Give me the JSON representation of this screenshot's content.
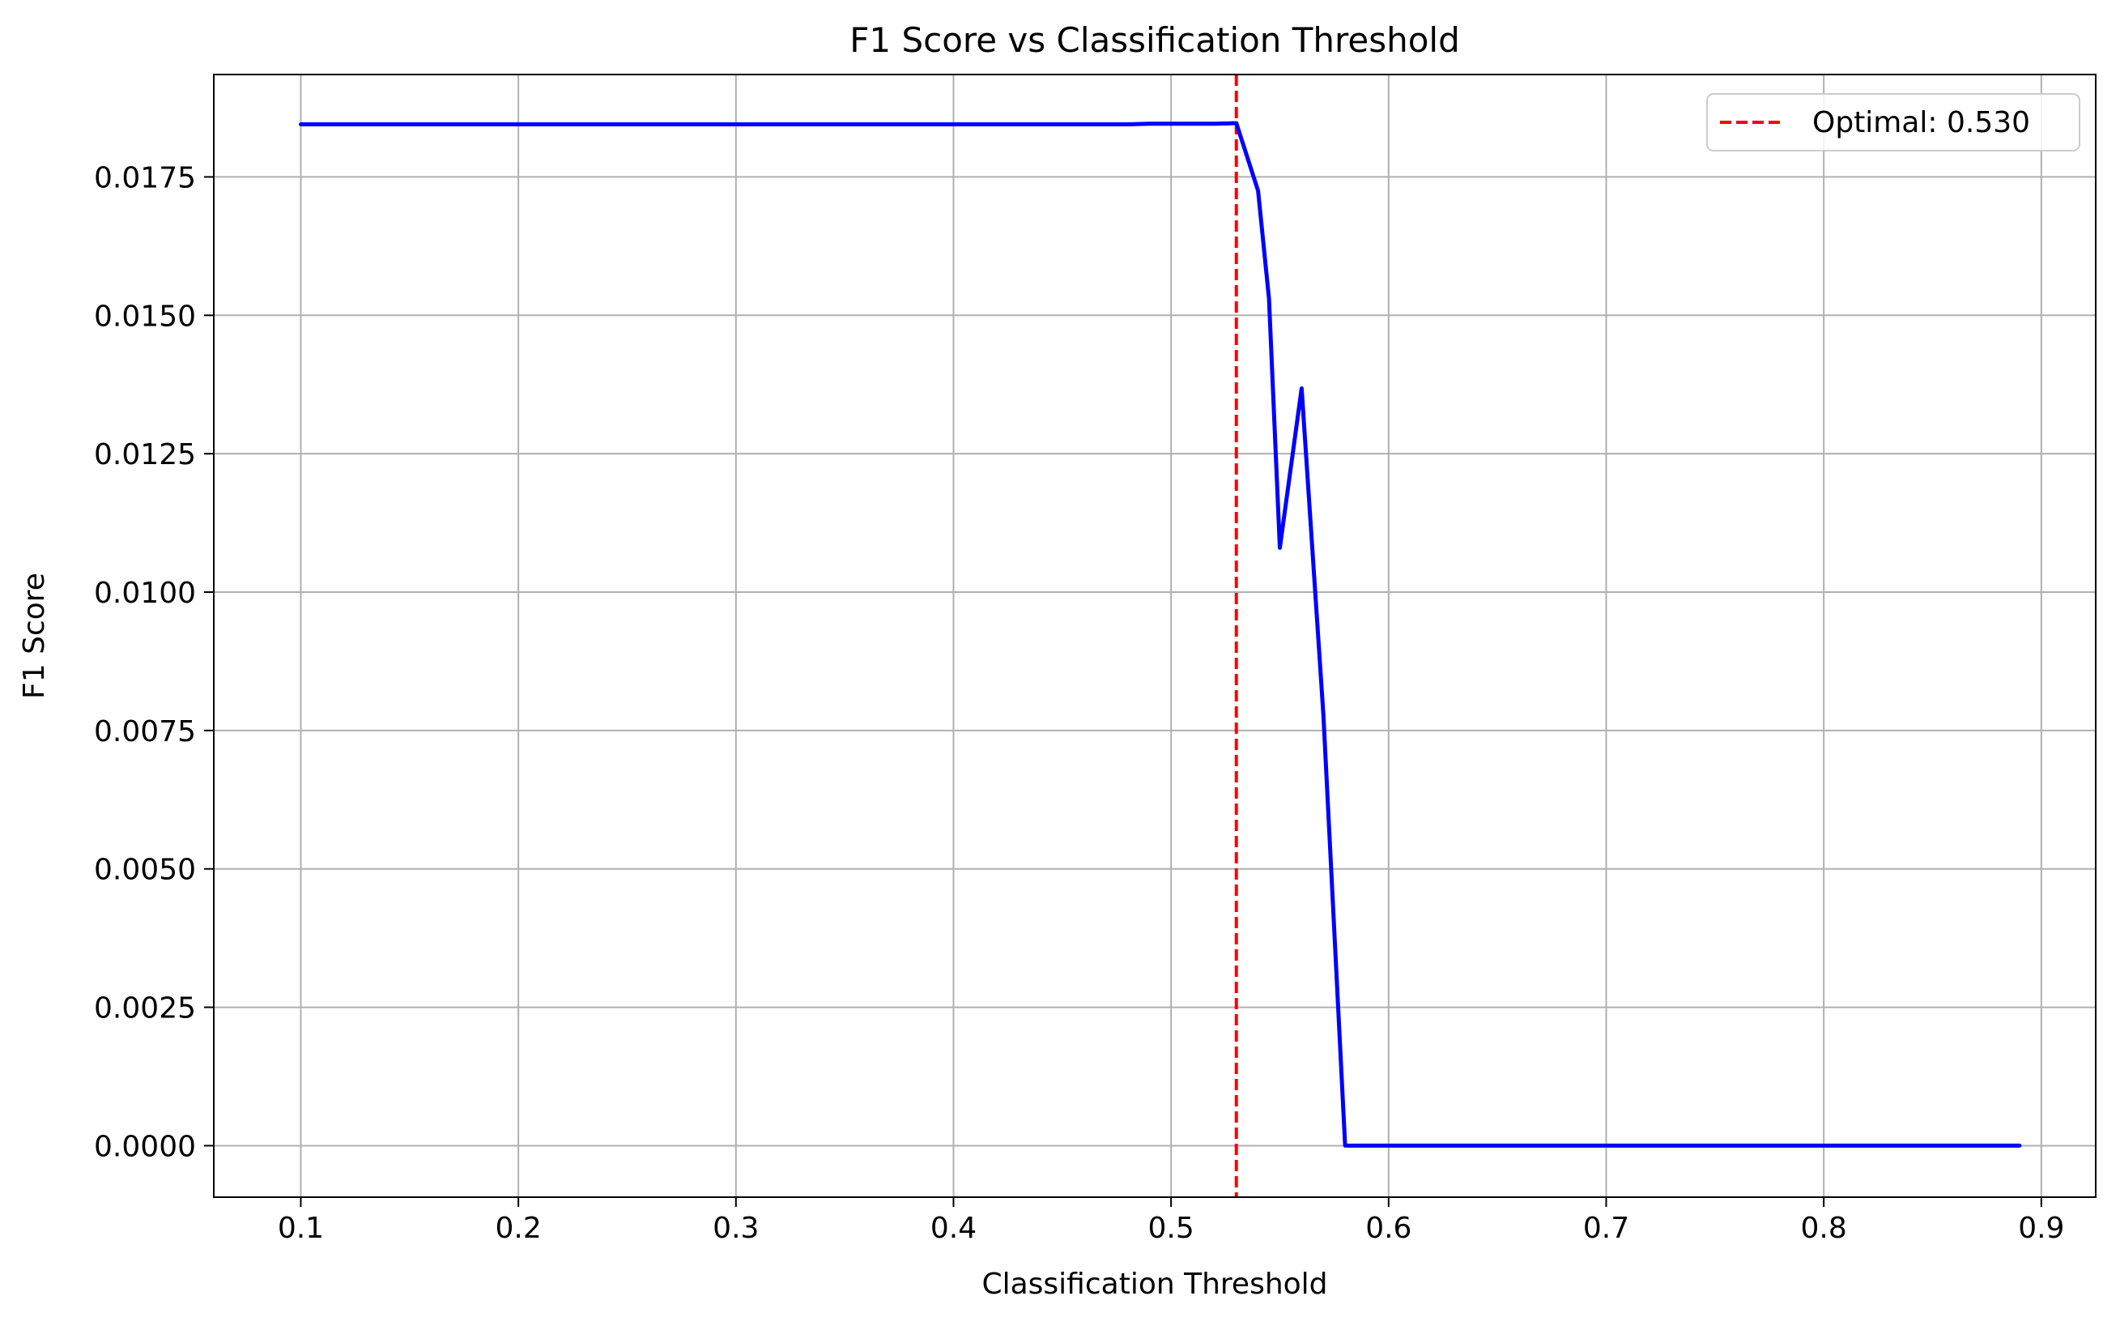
{
  "chart_data": {
    "type": "line",
    "title": "F1 Score vs Classification Threshold",
    "xlabel": "Classification Threshold",
    "ylabel": "F1 Score",
    "xlim": [
      0.06,
      0.925
    ],
    "ylim": [
      -0.00093,
      0.01935
    ],
    "x_ticks": [
      0.1,
      0.2,
      0.3,
      0.4,
      0.5,
      0.6,
      0.7,
      0.8,
      0.9
    ],
    "x_tick_labels": [
      "0.1",
      "0.2",
      "0.3",
      "0.4",
      "0.5",
      "0.6",
      "0.7",
      "0.8",
      "0.9"
    ],
    "y_ticks": [
      0.0,
      0.0025,
      0.005,
      0.0075,
      0.01,
      0.0125,
      0.015,
      0.0175
    ],
    "y_tick_labels": [
      "0.0000",
      "0.0025",
      "0.0050",
      "0.0075",
      "0.0100",
      "0.0125",
      "0.0150",
      "0.0175"
    ],
    "grid": true,
    "legend_position": "top-right",
    "series": [
      {
        "color": "#0000ff",
        "x": [
          0.1,
          0.12,
          0.14,
          0.16,
          0.18,
          0.2,
          0.22,
          0.24,
          0.26,
          0.28,
          0.3,
          0.32,
          0.34,
          0.36,
          0.38,
          0.4,
          0.42,
          0.44,
          0.46,
          0.48,
          0.49,
          0.5,
          0.51,
          0.52,
          0.53,
          0.54,
          0.545,
          0.55,
          0.56,
          0.57,
          0.58,
          0.6,
          0.62,
          0.64,
          0.66,
          0.68,
          0.7,
          0.72,
          0.74,
          0.76,
          0.78,
          0.8,
          0.82,
          0.84,
          0.86,
          0.88,
          0.89
        ],
        "y": [
          0.01845,
          0.01845,
          0.01845,
          0.01845,
          0.01845,
          0.01845,
          0.01845,
          0.01845,
          0.01845,
          0.01845,
          0.01845,
          0.01845,
          0.01845,
          0.01845,
          0.01845,
          0.01845,
          0.01845,
          0.01845,
          0.01845,
          0.01845,
          0.01846,
          0.01846,
          0.01846,
          0.01846,
          0.01847,
          0.01725,
          0.0153,
          0.0108,
          0.01368,
          0.0078,
          0.0,
          0.0,
          0.0,
          0.0,
          0.0,
          0.0,
          0.0,
          0.0,
          0.0,
          0.0,
          0.0,
          0.0,
          0.0,
          0.0,
          0.0,
          0.0,
          0.0
        ]
      }
    ],
    "reference_lines": [
      {
        "orientation": "vertical",
        "x": 0.53,
        "color": "#ff0000",
        "style": "dashed",
        "label": "Optimal: 0.530"
      }
    ]
  }
}
